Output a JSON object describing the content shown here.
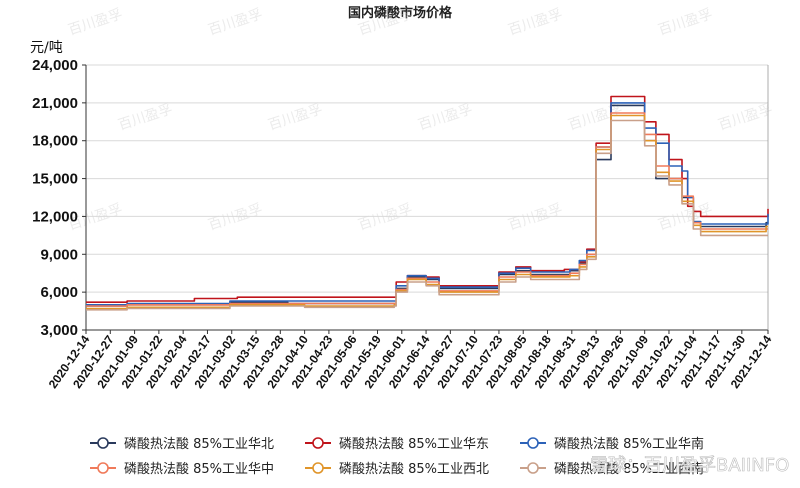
{
  "chart_data": {
    "type": "line",
    "title": "国内磷酸市场价格",
    "ylabel": "元/吨",
    "ylim": [
      3000,
      24000
    ],
    "yticks": [
      "3,000",
      "6,000",
      "9,000",
      "12,000",
      "15,000",
      "18,000",
      "21,000",
      "24,000"
    ],
    "ytick_values": [
      3000,
      6000,
      9000,
      12000,
      15000,
      18000,
      21000,
      24000
    ],
    "x_ticks": [
      "2020-12-14",
      "2020-12-27",
      "2021-01-09",
      "2021-01-22",
      "2021-02-04",
      "2021-02-17",
      "2021-03-02",
      "2021-03-15",
      "2021-03-28",
      "2021-04-10",
      "2021-04-23",
      "2021-05-06",
      "2021-05-19",
      "2021-06-01",
      "2021-06-14",
      "2021-06-27",
      "2021-07-10",
      "2021-07-23",
      "2021-08-05",
      "2021-08-18",
      "2021-08-31",
      "2021-09-13",
      "2021-09-26",
      "2021-10-09",
      "2021-10-22",
      "2021-11-04",
      "2021-11-17",
      "2021-11-30",
      "2021-12-14"
    ],
    "x_range": [
      "2020-12-14",
      "2021-12-14"
    ],
    "grid": true,
    "legend_position": "bottom",
    "series": [
      {
        "name": "磷酸热法酸 85%工业华北",
        "color": "#2a3a5c",
        "points": [
          [
            "2020-12-14",
            4900
          ],
          [
            "2021-01-05",
            5000
          ],
          [
            "2021-03-01",
            5200
          ],
          [
            "2021-04-01",
            5100
          ],
          [
            "2021-05-28",
            5100
          ],
          [
            "2021-05-29",
            6300
          ],
          [
            "2021-06-04",
            7200
          ],
          [
            "2021-06-14",
            7000
          ],
          [
            "2021-06-21",
            6300
          ],
          [
            "2021-07-20",
            6300
          ],
          [
            "2021-07-23",
            7400
          ],
          [
            "2021-08-01",
            7700
          ],
          [
            "2021-08-09",
            7400
          ],
          [
            "2021-08-30",
            7700
          ],
          [
            "2021-09-04",
            8300
          ],
          [
            "2021-09-08",
            9000
          ],
          [
            "2021-09-13",
            16500
          ],
          [
            "2021-09-21",
            20800
          ],
          [
            "2021-10-06",
            20800
          ],
          [
            "2021-10-09",
            18000
          ],
          [
            "2021-10-15",
            15000
          ],
          [
            "2021-10-22",
            15000
          ],
          [
            "2021-10-29",
            13500
          ],
          [
            "2021-11-04",
            11500
          ],
          [
            "2021-11-08",
            11200
          ],
          [
            "2021-12-08",
            11200
          ],
          [
            "2021-12-13",
            11500
          ],
          [
            "2021-12-14",
            11500
          ]
        ]
      },
      {
        "name": "磷酸热法酸 85%工业华东",
        "color": "#c0141b",
        "points": [
          [
            "2020-12-14",
            5200
          ],
          [
            "2021-01-05",
            5300
          ],
          [
            "2021-02-10",
            5500
          ],
          [
            "2021-03-05",
            5600
          ],
          [
            "2021-05-28",
            5600
          ],
          [
            "2021-05-29",
            6800
          ],
          [
            "2021-06-04",
            7300
          ],
          [
            "2021-06-14",
            7200
          ],
          [
            "2021-06-21",
            6500
          ],
          [
            "2021-07-20",
            6500
          ],
          [
            "2021-07-23",
            7600
          ],
          [
            "2021-08-01",
            8000
          ],
          [
            "2021-08-09",
            7700
          ],
          [
            "2021-08-27",
            7800
          ],
          [
            "2021-09-04",
            8400
          ],
          [
            "2021-09-08",
            9400
          ],
          [
            "2021-09-13",
            17800
          ],
          [
            "2021-09-21",
            21500
          ],
          [
            "2021-10-06",
            21500
          ],
          [
            "2021-10-09",
            19500
          ],
          [
            "2021-10-15",
            18500
          ],
          [
            "2021-10-22",
            16500
          ],
          [
            "2021-10-29",
            15000
          ],
          [
            "2021-11-01",
            12800
          ],
          [
            "2021-11-04",
            12400
          ],
          [
            "2021-11-08",
            12000
          ],
          [
            "2021-12-13",
            12000
          ],
          [
            "2021-12-14",
            12600
          ]
        ]
      },
      {
        "name": "磷酸热法酸 85%工业华南",
        "color": "#2c62b8",
        "points": [
          [
            "2020-12-14",
            5000
          ],
          [
            "2021-01-05",
            5100
          ],
          [
            "2021-03-01",
            5300
          ],
          [
            "2021-05-28",
            5300
          ],
          [
            "2021-05-29",
            6500
          ],
          [
            "2021-06-04",
            7300
          ],
          [
            "2021-06-14",
            7100
          ],
          [
            "2021-06-21",
            6400
          ],
          [
            "2021-07-20",
            6400
          ],
          [
            "2021-07-23",
            7500
          ],
          [
            "2021-08-01",
            7900
          ],
          [
            "2021-08-09",
            7600
          ],
          [
            "2021-08-30",
            7800
          ],
          [
            "2021-09-04",
            8500
          ],
          [
            "2021-09-08",
            9300
          ],
          [
            "2021-09-13",
            17500
          ],
          [
            "2021-09-21",
            21000
          ],
          [
            "2021-10-06",
            21000
          ],
          [
            "2021-10-09",
            19000
          ],
          [
            "2021-10-15",
            17800
          ],
          [
            "2021-10-22",
            16000
          ],
          [
            "2021-10-29",
            15600
          ],
          [
            "2021-11-01",
            13500
          ],
          [
            "2021-11-04",
            11600
          ],
          [
            "2021-11-08",
            11400
          ],
          [
            "2021-12-13",
            11400
          ],
          [
            "2021-12-14",
            12200
          ]
        ]
      },
      {
        "name": "磷酸热法酸 85%工业华中",
        "color": "#f07a5a",
        "points": [
          [
            "2020-12-14",
            4900
          ],
          [
            "2021-01-05",
            5000
          ],
          [
            "2021-03-01",
            5100
          ],
          [
            "2021-05-28",
            5100
          ],
          [
            "2021-05-29",
            6200
          ],
          [
            "2021-06-04",
            7100
          ],
          [
            "2021-06-14",
            6800
          ],
          [
            "2021-06-21",
            6100
          ],
          [
            "2021-07-20",
            6100
          ],
          [
            "2021-07-23",
            7200
          ],
          [
            "2021-08-01",
            7600
          ],
          [
            "2021-08-09",
            7300
          ],
          [
            "2021-08-30",
            7500
          ],
          [
            "2021-09-04",
            8200
          ],
          [
            "2021-09-08",
            9000
          ],
          [
            "2021-09-13",
            17500
          ],
          [
            "2021-09-21",
            20200
          ],
          [
            "2021-10-06",
            20200
          ],
          [
            "2021-10-09",
            18500
          ],
          [
            "2021-10-15",
            16000
          ],
          [
            "2021-10-22",
            15000
          ],
          [
            "2021-10-29",
            13600
          ],
          [
            "2021-11-04",
            11500
          ],
          [
            "2021-11-08",
            11000
          ],
          [
            "2021-12-13",
            11000
          ],
          [
            "2021-12-14",
            11000
          ]
        ]
      },
      {
        "name": "磷酸热法酸 85%工业西北",
        "color": "#e0952a",
        "points": [
          [
            "2020-12-14",
            4700
          ],
          [
            "2021-01-05",
            4800
          ],
          [
            "2021-03-01",
            5000
          ],
          [
            "2021-04-10",
            4900
          ],
          [
            "2021-05-28",
            5000
          ],
          [
            "2021-05-29",
            6100
          ],
          [
            "2021-06-04",
            7000
          ],
          [
            "2021-06-14",
            6600
          ],
          [
            "2021-06-21",
            6000
          ],
          [
            "2021-07-20",
            6000
          ],
          [
            "2021-07-23",
            7000
          ],
          [
            "2021-08-01",
            7400
          ],
          [
            "2021-08-09",
            7200
          ],
          [
            "2021-08-30",
            7300
          ],
          [
            "2021-09-04",
            8000
          ],
          [
            "2021-09-08",
            8800
          ],
          [
            "2021-09-13",
            17300
          ],
          [
            "2021-09-21",
            20000
          ],
          [
            "2021-10-06",
            20000
          ],
          [
            "2021-10-09",
            18000
          ],
          [
            "2021-10-15",
            15500
          ],
          [
            "2021-10-22",
            14800
          ],
          [
            "2021-10-29",
            13200
          ],
          [
            "2021-11-04",
            11300
          ],
          [
            "2021-11-08",
            10800
          ],
          [
            "2021-12-13",
            11200
          ],
          [
            "2021-12-14",
            11200
          ]
        ]
      },
      {
        "name": "磷酸热法酸 85%工业西南",
        "color": "#c9a08a",
        "points": [
          [
            "2020-12-14",
            4600
          ],
          [
            "2021-01-05",
            4700
          ],
          [
            "2021-03-01",
            4900
          ],
          [
            "2021-04-10",
            4800
          ],
          [
            "2021-05-28",
            4900
          ],
          [
            "2021-05-29",
            6000
          ],
          [
            "2021-06-04",
            6800
          ],
          [
            "2021-06-14",
            6500
          ],
          [
            "2021-06-21",
            5800
          ],
          [
            "2021-07-20",
            5800
          ],
          [
            "2021-07-23",
            6800
          ],
          [
            "2021-08-01",
            7200
          ],
          [
            "2021-08-09",
            7000
          ],
          [
            "2021-08-30",
            7000
          ],
          [
            "2021-09-04",
            7800
          ],
          [
            "2021-09-08",
            8600
          ],
          [
            "2021-09-13",
            17000
          ],
          [
            "2021-09-21",
            19600
          ],
          [
            "2021-10-06",
            19600
          ],
          [
            "2021-10-09",
            17600
          ],
          [
            "2021-10-15",
            15200
          ],
          [
            "2021-10-22",
            14500
          ],
          [
            "2021-10-29",
            13000
          ],
          [
            "2021-11-04",
            11000
          ],
          [
            "2021-11-08",
            10500
          ],
          [
            "2021-12-13",
            10500
          ],
          [
            "2021-12-14",
            10500
          ]
        ]
      }
    ]
  },
  "watermark": {
    "text": "雪球：百川盈孚BAIINFO",
    "repeat_text": "百川盈孚"
  }
}
